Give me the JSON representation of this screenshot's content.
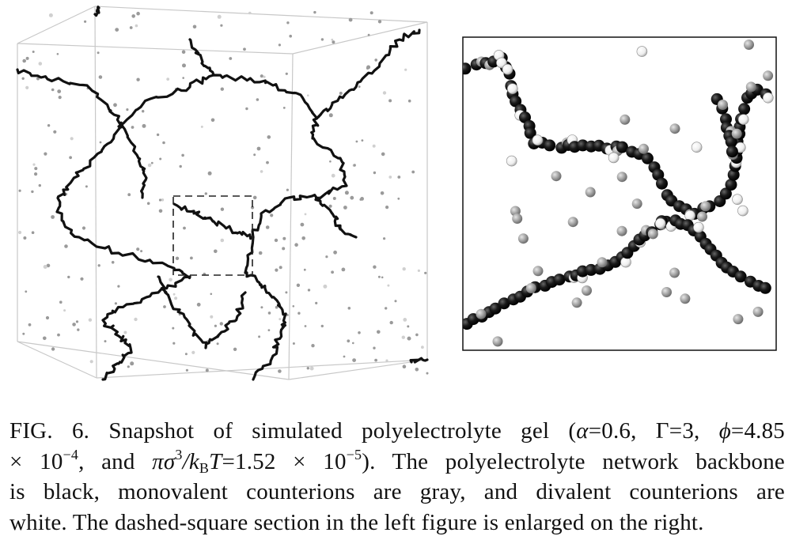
{
  "figure": {
    "left_panel": "3D snapshot of polymer network in simulation box",
    "right_panel": "Enlarged dashed-square section"
  },
  "caption": {
    "label": "FIG. 6.",
    "text_1": "Snapshot of simulated polyelectrolyte gel (",
    "alpha_sym": "α",
    "alpha_val": "=0.6, ",
    "gamma": "Γ=3, ",
    "phi_sym": "ϕ",
    "phi_val": "=4.85",
    "times1": "× 10",
    "exp1": "−4",
    "and": ", and ",
    "pi_sigma": "πσ",
    "exp3": "3",
    "slash_k": "/k",
    "sub_B": "B",
    "T_eq": "T",
    "eq_val": "=1.52 × 10",
    "exp2": "−5",
    "text_2": "). The polyelectrolyte network backbone",
    "line3": "is black, monovalent counterions are gray, and divalent counterions are",
    "line4": "white. The dashed-square section in the left figure is enlarged on the right."
  },
  "colors": {
    "backbone": "#111111",
    "monovalent": "#9a9a9a",
    "divalent": "#ffffff",
    "box_edge": "#c8c8c8"
  }
}
